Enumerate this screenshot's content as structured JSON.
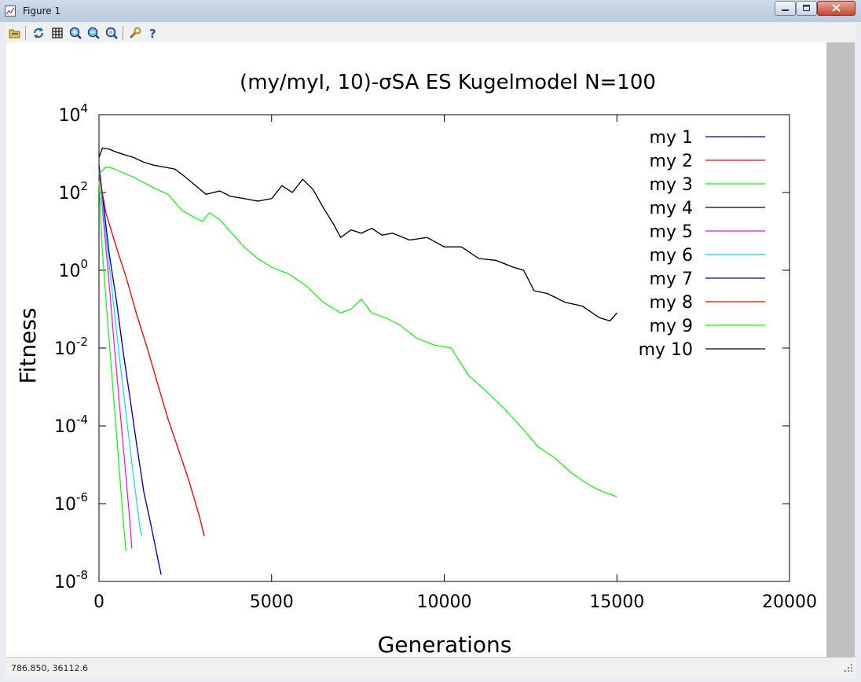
{
  "window": {
    "title": "Figure 1"
  },
  "toolbar": {
    "buttons": [
      {
        "name": "load-icon"
      },
      {
        "name": "refresh-icon"
      },
      {
        "name": "grid-icon"
      },
      {
        "name": "zoom-in-icon"
      },
      {
        "name": "zoom-out-icon"
      },
      {
        "name": "zoom-autoscale-icon"
      },
      {
        "name": "settings-icon"
      },
      {
        "name": "help-icon"
      }
    ]
  },
  "statusbar": {
    "coords": "786.850,  36112.6"
  },
  "chart_data": {
    "type": "line",
    "title": "(my/myI, 10)-σSA ES Kugelmodel N=100",
    "xlabel": "Generations",
    "ylabel": "Fitness",
    "xlim": [
      0,
      20000
    ],
    "ylim_exp": [
      -8,
      4
    ],
    "log_y": true,
    "grid": false,
    "legend_position": "top-right",
    "x_ticks": [
      "0",
      "5000",
      "10000",
      "15000",
      "20000"
    ],
    "y_ticks": [
      {
        "base": "10",
        "exp": "4"
      },
      {
        "base": "10",
        "exp": "2"
      },
      {
        "base": "10",
        "exp": "0"
      },
      {
        "base": "10",
        "exp": "-2"
      },
      {
        "base": "10",
        "exp": "-4"
      },
      {
        "base": "10",
        "exp": "-6"
      },
      {
        "base": "10",
        "exp": "-8"
      }
    ],
    "series": [
      {
        "name": "my 1",
        "color": "#0000c8",
        "x": [
          0,
          150,
          300,
          500,
          700,
          900,
          1100,
          1300,
          1500,
          1700,
          1800
        ],
        "y": [
          500,
          35,
          2.5,
          0.18,
          0.008,
          0.0005,
          3e-05,
          2e-06,
          3e-07,
          4e-08,
          1.5e-08
        ]
      },
      {
        "name": "my 2",
        "color": "#ff0000",
        "x": [
          0,
          200,
          500,
          800,
          1100,
          1400,
          1700,
          2000,
          2300,
          2600,
          2900,
          3050
        ],
        "y": [
          300,
          30,
          4,
          0.6,
          0.07,
          0.01,
          0.0012,
          0.00015,
          2.5e-05,
          4e-06,
          5e-07,
          1.5e-07
        ]
      },
      {
        "name": "my 3",
        "color": "#00ff00",
        "x": [
          0,
          100,
          250,
          400,
          550,
          700,
          780
        ],
        "y": [
          200,
          3,
          0.05,
          0.001,
          2e-05,
          4e-07,
          6e-08
        ]
      },
      {
        "name": "my 4",
        "color": "#000000",
        "x": [
          0,
          100,
          300,
          500,
          800,
          1000,
          1300,
          1600,
          1900,
          2200,
          2500,
          2800,
          3100,
          3500,
          3800,
          4200,
          4600,
          5000,
          5300,
          5600,
          5900,
          6200,
          6500,
          6800,
          7000,
          7300,
          7600,
          7900,
          8200,
          8500,
          9000,
          9500,
          10000,
          10500,
          11000,
          11500,
          12000,
          12300,
          12600,
          13000,
          13500,
          14000,
          14500,
          14800,
          15000
        ],
        "y": [
          800,
          1400,
          1300,
          1100,
          900,
          800,
          600,
          500,
          450,
          400,
          250,
          150,
          90,
          110,
          80,
          70,
          60,
          70,
          150,
          100,
          220,
          120,
          40,
          15,
          7,
          11,
          9,
          12,
          8,
          9,
          6,
          7,
          4,
          4,
          2,
          1.8,
          1.2,
          1,
          0.3,
          0.25,
          0.15,
          0.12,
          0.06,
          0.05,
          0.08
        ]
      },
      {
        "name": "my 5",
        "color": "#ff00ff",
        "x": [
          0,
          150,
          300,
          450,
          600,
          750,
          900,
          950
        ],
        "y": [
          400,
          12,
          0.4,
          0.01,
          0.0003,
          1e-05,
          3e-07,
          7e-08
        ]
      },
      {
        "name": "my 6",
        "color": "#00e0e0",
        "x": [
          0,
          200,
          400,
          600,
          800,
          1000,
          1200,
          1250
        ],
        "y": [
          300,
          8,
          0.2,
          0.005,
          0.00015,
          5e-06,
          2e-07,
          1.5e-07
        ]
      },
      {
        "name": "my 7",
        "color": "#0000c8",
        "x": [
          0,
          150,
          300,
          500,
          700,
          900,
          1100,
          1300,
          1500,
          1700,
          1800
        ],
        "y": [
          500,
          35,
          2.5,
          0.18,
          0.008,
          0.0005,
          3e-05,
          2e-06,
          3e-07,
          4e-08,
          1.5e-08
        ]
      },
      {
        "name": "my 8",
        "color": "#ff0000",
        "x": [
          0,
          200,
          500,
          800,
          1100,
          1400,
          1700,
          2000,
          2300,
          2600,
          2900,
          3050
        ],
        "y": [
          300,
          30,
          4,
          0.6,
          0.07,
          0.01,
          0.0012,
          0.00015,
          2.5e-05,
          4e-06,
          5e-07,
          1.5e-07
        ]
      },
      {
        "name": "my 9",
        "color": "#00ff00",
        "x": [
          0,
          200,
          400,
          700,
          1000,
          1300,
          1600,
          2000,
          2400,
          2800,
          3000,
          3200,
          3500,
          3800,
          4200,
          4600,
          5000,
          5500,
          6000,
          6500,
          7000,
          7300,
          7600,
          7900,
          8300,
          8700,
          9200,
          9700,
          10200,
          10700,
          11200,
          11700,
          12200,
          12700,
          13200,
          13700,
          14200,
          14600,
          15000
        ],
        "y": [
          300,
          450,
          420,
          320,
          250,
          180,
          130,
          90,
          35,
          22,
          18,
          30,
          20,
          10,
          4,
          2,
          1.2,
          0.8,
          0.4,
          0.15,
          0.08,
          0.1,
          0.18,
          0.08,
          0.06,
          0.04,
          0.018,
          0.012,
          0.01,
          0.002,
          0.0008,
          0.0003,
          0.0001,
          3e-05,
          1.5e-05,
          6e-06,
          3e-06,
          2e-06,
          1.5e-06
        ]
      },
      {
        "name": "my 10",
        "color": "#000000",
        "x": [
          0,
          100,
          300,
          500,
          800,
          1000,
          1300,
          1600,
          1900,
          2200,
          2500,
          2800,
          3100,
          3500,
          3800,
          4200,
          4600,
          5000,
          5300,
          5600,
          5900,
          6200,
          6500,
          6800,
          7000,
          7300,
          7600,
          7900,
          8200,
          8500,
          9000,
          9500,
          10000,
          10500,
          11000,
          11500,
          12000,
          12300,
          12600,
          13000,
          13500,
          14000,
          14500,
          14800,
          15000
        ],
        "y": [
          800,
          1400,
          1300,
          1100,
          900,
          800,
          600,
          500,
          450,
          400,
          250,
          150,
          90,
          110,
          80,
          70,
          60,
          70,
          150,
          100,
          220,
          120,
          40,
          15,
          7,
          11,
          9,
          12,
          8,
          9,
          6,
          7,
          4,
          4,
          2,
          1.8,
          1.2,
          1,
          0.3,
          0.25,
          0.15,
          0.12,
          0.06,
          0.05,
          0.08
        ]
      }
    ]
  }
}
